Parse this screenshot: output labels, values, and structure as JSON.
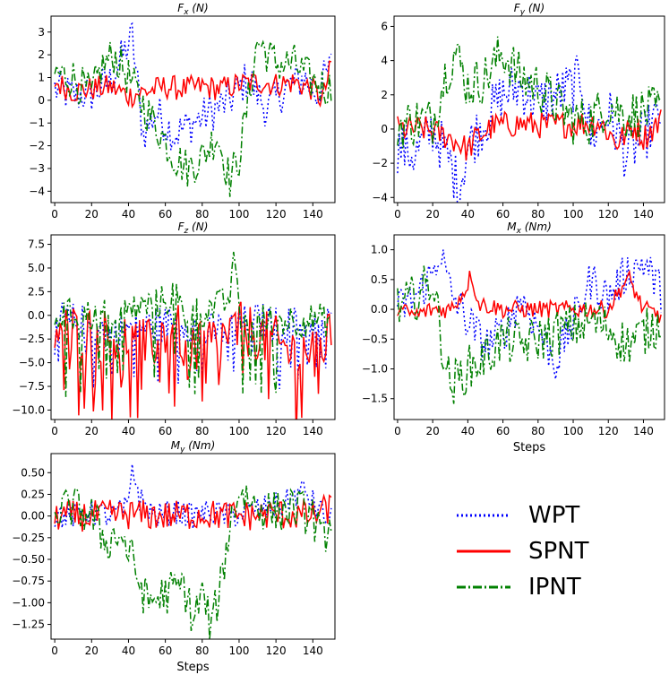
{
  "chart_data": [
    {
      "type": "line",
      "title": "F_x (N)",
      "title_symbol": "F",
      "title_sub": "x",
      "title_unit": "(N)",
      "xlabel": "",
      "xlim": [
        -2,
        152
      ],
      "ylim": [
        -4.5,
        3.7
      ],
      "xticks": [
        0,
        20,
        40,
        60,
        80,
        100,
        120,
        140
      ],
      "yticks": [
        -4,
        -3,
        -2,
        -1,
        0,
        1,
        2,
        3
      ],
      "ytick_labels": [
        "−4",
        "−3",
        "−2",
        "−1",
        "0",
        "1",
        "2",
        "3"
      ],
      "series_anchors": {
        "WPT": {
          "x": [
            0,
            10,
            20,
            30,
            42,
            48,
            55,
            65,
            75,
            85,
            95,
            105,
            115,
            125,
            135,
            142,
            150
          ],
          "y": [
            0.5,
            0.2,
            0.3,
            0.8,
            2.8,
            -1.5,
            -0.5,
            -1.5,
            -1.0,
            -0.5,
            0.0,
            1.0,
            -0.4,
            0.5,
            1.0,
            0.3,
            1.5
          ]
        },
        "SPNT": {
          "x": [
            0,
            10,
            20,
            30,
            40,
            50,
            60,
            70,
            80,
            90,
            100,
            110,
            120,
            130,
            140,
            145,
            150
          ],
          "y": [
            0.8,
            0.4,
            0.5,
            0.6,
            0.2,
            0.4,
            0.6,
            0.5,
            0.6,
            0.5,
            0.7,
            0.8,
            0.7,
            0.8,
            0.5,
            0.0,
            1.5
          ]
        },
        "IPNT": {
          "x": [
            0,
            10,
            20,
            25,
            32,
            40,
            50,
            58,
            65,
            72,
            80,
            88,
            95,
            100,
            105,
            110,
            120,
            130,
            140,
            150
          ],
          "y": [
            1.2,
            1.0,
            0.2,
            1.4,
            2.0,
            1.0,
            -0.5,
            -1.5,
            -2.5,
            -3.0,
            -2.5,
            -1.5,
            -3.5,
            -2.5,
            0.0,
            2.6,
            1.6,
            1.6,
            0.8,
            0.5
          ]
        }
      },
      "series_noise": {
        "WPT": 0.9,
        "SPNT": 0.55,
        "IPNT": 0.9
      }
    },
    {
      "type": "line",
      "title": "F_y (N)",
      "title_symbol": "F",
      "title_sub": "y",
      "title_unit": "(N)",
      "xlabel": "",
      "xlim": [
        -2,
        152
      ],
      "ylim": [
        -4.3,
        6.6
      ],
      "xticks": [
        0,
        20,
        40,
        60,
        80,
        100,
        120,
        140
      ],
      "yticks": [
        -4,
        -2,
        0,
        2,
        4,
        6
      ],
      "ytick_labels": [
        "−4",
        "−2",
        "0",
        "2",
        "4",
        "6"
      ],
      "series_anchors": {
        "WPT": {
          "x": [
            0,
            10,
            20,
            30,
            35,
            40,
            50,
            60,
            70,
            80,
            90,
            100,
            105,
            110,
            120,
            130,
            140,
            150
          ],
          "y": [
            -1.0,
            -1.5,
            0.0,
            -2.0,
            -3.5,
            -1.0,
            0.5,
            2.0,
            2.5,
            1.5,
            2.0,
            2.5,
            3.0,
            -0.5,
            1.0,
            -1.5,
            -0.5,
            1.0
          ]
        },
        "SPNT": {
          "x": [
            0,
            15,
            30,
            40,
            45,
            55,
            70,
            85,
            100,
            115,
            125,
            135,
            140,
            150
          ],
          "y": [
            0.0,
            0.0,
            -0.5,
            -1.2,
            -0.5,
            0.2,
            0.3,
            0.2,
            0.3,
            0.4,
            -0.8,
            0.2,
            -0.5,
            0.5
          ]
        },
        "IPNT": {
          "x": [
            0,
            10,
            20,
            28,
            33,
            40,
            50,
            60,
            70,
            80,
            90,
            100,
            110,
            120,
            130,
            140,
            150
          ],
          "y": [
            0.2,
            0.5,
            0.5,
            3.5,
            4.5,
            2.5,
            3.0,
            4.5,
            3.0,
            2.5,
            1.5,
            0.5,
            0.5,
            1.5,
            0.8,
            1.0,
            1.0
          ]
        }
      },
      "series_noise": {
        "WPT": 1.6,
        "SPNT": 0.8,
        "IPNT": 1.5
      }
    },
    {
      "type": "line",
      "title": "F_z (N)",
      "title_symbol": "F",
      "title_sub": "z",
      "title_unit": "(N)",
      "xlabel": "",
      "xlim": [
        -2,
        152
      ],
      "ylim": [
        -11.0,
        8.5
      ],
      "xticks": [
        0,
        20,
        40,
        60,
        80,
        100,
        120,
        140
      ],
      "yticks": [
        -10,
        -7.5,
        -5,
        -2.5,
        0,
        2.5,
        5,
        7.5
      ],
      "ytick_labels": [
        "−10.0",
        "−7.5",
        "−5.0",
        "−2.5",
        "0.0",
        "2.5",
        "5.0",
        "7.5"
      ],
      "series_anchors": {
        "WPT": {
          "x": [
            0,
            20,
            30,
            40,
            50,
            60,
            70,
            80,
            90,
            100,
            110,
            120,
            140,
            150
          ],
          "y": [
            -0.3,
            -1.0,
            -2.0,
            -1.5,
            -1.0,
            -1.0,
            -0.5,
            -2.0,
            -1.5,
            -1.0,
            -0.5,
            -1.0,
            -1.0,
            -1.0
          ]
        },
        "SPNT": {
          "x": [
            0,
            20,
            40,
            50,
            60,
            70,
            80,
            90,
            100,
            110,
            120,
            130,
            140,
            150
          ],
          "y": [
            -1.5,
            -2.0,
            -2.5,
            -3.5,
            -1.5,
            -2.0,
            -3.0,
            -2.5,
            -1.5,
            -2.0,
            -3.0,
            -4.0,
            -3.5,
            -2.5
          ]
        },
        "IPNT": {
          "x": [
            0,
            20,
            40,
            50,
            60,
            65,
            70,
            80,
            90,
            95,
            98,
            100,
            110,
            130,
            150
          ],
          "y": [
            0.0,
            0.0,
            0.5,
            1.0,
            1.5,
            2.5,
            0.0,
            0.5,
            1.0,
            2.0,
            6.5,
            -0.5,
            -0.5,
            -0.5,
            -0.5
          ]
        }
      },
      "series_noise": {
        "WPT": 2.0,
        "SPNT": 3.0,
        "IPNT": 1.8
      }
    },
    {
      "type": "line",
      "title": "M_x (Nm)",
      "title_symbol": "M",
      "title_sub": "x",
      "title_unit": "(Nm)",
      "xlabel": "Steps",
      "xlim": [
        -2,
        152
      ],
      "ylim": [
        -1.85,
        1.25
      ],
      "xticks": [
        0,
        20,
        40,
        60,
        80,
        100,
        120,
        140
      ],
      "yticks": [
        -1.5,
        -1.0,
        -0.5,
        0.0,
        0.5,
        1.0
      ],
      "ytick_labels": [
        "−1.5",
        "−1.0",
        "−0.5",
        "0.0",
        "0.5",
        "1.0"
      ],
      "series_anchors": {
        "WPT": {
          "x": [
            0,
            10,
            20,
            24,
            30,
            40,
            50,
            60,
            70,
            80,
            90,
            100,
            110,
            120,
            130,
            140,
            150
          ],
          "y": [
            0.0,
            0.2,
            0.6,
            1.0,
            0.3,
            -0.2,
            -0.6,
            -0.4,
            0.2,
            -0.3,
            -0.9,
            -0.2,
            0.5,
            0.2,
            0.6,
            0.8,
            0.3
          ]
        },
        "SPNT": {
          "x": [
            0,
            10,
            20,
            30,
            38,
            42,
            46,
            60,
            80,
            100,
            120,
            128,
            132,
            140,
            150
          ],
          "y": [
            0.0,
            -0.1,
            0.0,
            0.0,
            0.3,
            0.6,
            0.1,
            0.0,
            0.0,
            0.0,
            0.0,
            0.4,
            0.5,
            0.0,
            -0.1
          ]
        },
        "IPNT": {
          "x": [
            0,
            10,
            20,
            25,
            30,
            40,
            50,
            60,
            70,
            80,
            90,
            100,
            110,
            120,
            130,
            140,
            150
          ],
          "y": [
            0.0,
            0.2,
            0.5,
            -0.5,
            -1.3,
            -1.0,
            -0.8,
            -0.5,
            -0.6,
            -0.5,
            -0.4,
            -0.3,
            -0.2,
            -0.3,
            -0.6,
            -0.4,
            -0.2
          ]
        }
      },
      "series_noise": {
        "WPT": 0.35,
        "SPNT": 0.15,
        "IPNT": 0.4
      }
    },
    {
      "type": "line",
      "title": "M_y (Nm)",
      "title_symbol": "M",
      "title_sub": "y",
      "title_unit": "(Nm)",
      "xlabel": "Steps",
      "xlim": [
        -2,
        152
      ],
      "ylim": [
        -1.42,
        0.72
      ],
      "xticks": [
        0,
        20,
        40,
        60,
        80,
        100,
        120,
        140
      ],
      "yticks": [
        -1.25,
        -1.0,
        -0.75,
        -0.5,
        -0.25,
        0.0,
        0.25,
        0.5
      ],
      "ytick_labels": [
        "−1.25",
        "−1.00",
        "−0.75",
        "−0.50",
        "−0.25",
        "0.00",
        "0.25",
        "0.50"
      ],
      "series_anchors": {
        "WPT": {
          "x": [
            0,
            10,
            20,
            30,
            40,
            42,
            46,
            55,
            65,
            75,
            85,
            95,
            105,
            115,
            125,
            135,
            142,
            150
          ],
          "y": [
            0.0,
            0.0,
            0.05,
            0.0,
            0.1,
            0.6,
            0.2,
            0.0,
            0.05,
            0.0,
            0.05,
            0.0,
            0.05,
            0.1,
            0.15,
            0.3,
            0.1,
            -0.05
          ]
        },
        "SPNT": {
          "x": [
            0,
            20,
            40,
            60,
            80,
            100,
            120,
            140,
            150
          ],
          "y": [
            0.0,
            0.0,
            0.02,
            0.0,
            0.02,
            0.0,
            0.02,
            0.0,
            0.1
          ]
        },
        "IPNT": {
          "x": [
            0,
            10,
            20,
            28,
            35,
            40,
            45,
            50,
            60,
            70,
            75,
            80,
            85,
            90,
            95,
            100,
            110,
            120,
            130,
            140,
            145,
            150
          ],
          "y": [
            0.05,
            0.1,
            0.0,
            -0.3,
            -0.2,
            -0.4,
            -0.7,
            -1.0,
            -0.9,
            -0.8,
            -1.2,
            -0.9,
            -1.3,
            -0.8,
            -0.1,
            0.3,
            0.1,
            0.05,
            0.1,
            0.0,
            -0.3,
            0.0
          ]
        }
      },
      "series_noise": {
        "WPT": 0.15,
        "SPNT": 0.18,
        "IPNT": 0.25
      }
    }
  ],
  "legend": {
    "entries": [
      {
        "label": "WPT",
        "color": "#0000ff",
        "style": "dotted"
      },
      {
        "label": "SPNT",
        "color": "#ff0000",
        "style": "solid"
      },
      {
        "label": "IPNT",
        "color": "#008000",
        "style": "dashdot"
      }
    ]
  },
  "colors": {
    "WPT": "#0000ff",
    "SPNT": "#ff0000",
    "IPNT": "#008000"
  }
}
